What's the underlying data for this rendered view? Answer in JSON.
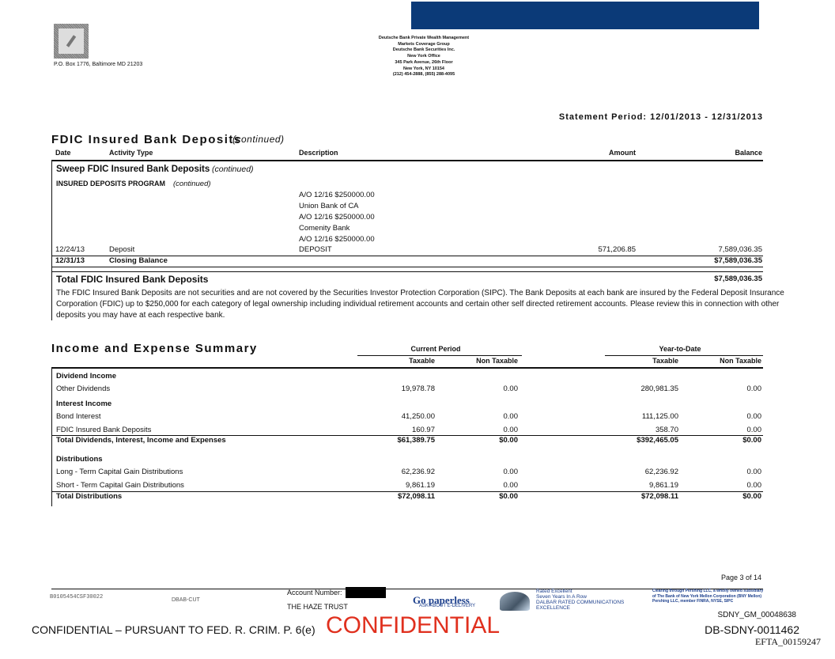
{
  "header": {
    "po_box": "P.O. Box 1776, Baltimore MD 21203",
    "address_lines": [
      "Deutsche Bank Private Wealth Management",
      "Markets Coverage Group",
      "Deutsche Bank Securities Inc.",
      "New York Office",
      "345 Park Avenue, 26th Floor",
      "New York, NY 10154",
      "(212) 454-2888, (855) 288-4095"
    ],
    "statement_period": "Statement Period: 12/01/2013 - 12/31/2013"
  },
  "fdic": {
    "title": "FDIC Insured Bank Deposits",
    "title_suffix": "(continued)",
    "columns": [
      "Date",
      "Activity Type",
      "Description",
      "Amount",
      "Balance"
    ],
    "section": "Sweep FDIC Insured Bank Deposits",
    "section_suffix": "(continued)",
    "program": "INSURED DEPOSITS PROGRAM",
    "program_suffix": "(continued)",
    "description_lines": [
      "A/O 12/16 $250000.00",
      "Union Bank of CA",
      "A/O 12/16 $250000.00",
      "Comenity Bank",
      "A/O 12/16 $250000.00"
    ],
    "deposit_row": [
      "12/24/13",
      "Deposit",
      "DEPOSIT",
      "571,206.85",
      "7,589,036.35"
    ],
    "closing_row": [
      "12/31/13",
      "Closing Balance",
      "$7,589,036.35"
    ],
    "total_label": "Total FDIC Insured Bank Deposits",
    "total_value": "$7,589,036.35",
    "note_lines": [
      "The FDIC Insured Bank Deposits are not securities and are not covered by the Securities Investor Protection Corporation (SIPC). The Bank Deposits at each bank are insured by the Federal Deposit Insurance",
      "Corporation (FDIC) up to $250,000 for each category of legal ownership including individual retirement accounts and certain other self directed retirement accounts. Please review this in connection with other",
      "deposits you may have at each respective bank."
    ]
  },
  "income": {
    "title": "Income and Expense Summary",
    "groups": [
      "Current Period",
      "Year-to-Date"
    ],
    "columns": [
      "Taxable",
      "Non Taxable",
      "Taxable",
      "Non Taxable"
    ],
    "sections": [
      {
        "title": "Dividend Income",
        "rows": [
          {
            "label": "Other Dividends",
            "values": [
              "19,978.78",
              "0.00",
              "280,981.35",
              "0.00"
            ]
          }
        ]
      },
      {
        "title": "Interest Income",
        "rows": [
          {
            "label": "Bond Interest",
            "values": [
              "41,250.00",
              "0.00",
              "111,125.00",
              "0.00"
            ]
          },
          {
            "label": "FDIC Insured Bank Deposits",
            "values": [
              "160.97",
              "0.00",
              "358.70",
              "0.00"
            ]
          }
        ],
        "total": {
          "label": "Total Dividends, Interest, Income and Expenses",
          "values": [
            "$61,389.75",
            "$0.00",
            "$392,465.05",
            "$0.00"
          ]
        }
      },
      {
        "title": "Distributions",
        "rows": [
          {
            "label": "Long - Term Capital Gain Distributions",
            "values": [
              "62,236.92",
              "0.00",
              "62,236.92",
              "0.00"
            ]
          },
          {
            "label": "Short - Term Capital Gain Distributions",
            "values": [
              "9,861.19",
              "0.00",
              "9,861.19",
              "0.00"
            ]
          }
        ],
        "total": {
          "label": "Total Distributions",
          "values": [
            "$72,098.11",
            "$0.00",
            "$72,098.11",
            "$0.00"
          ]
        }
      }
    ]
  },
  "footer": {
    "page": "Page 3 of 14",
    "code": "B0105454CSF30022",
    "dbab": "DBAB-CUT",
    "account_label": "Account Number:",
    "trust": "THE HAZE TRUST",
    "go_paperless": "Go paperless",
    "ask": "ASK ABOUT E-DELIVERY",
    "rated_lines": [
      "Rated Excellent",
      "Seven Years In A Row",
      "DALBAR RATED COMMUNICATIONS",
      "EXCELLENCE"
    ],
    "clearing_lines": [
      "Clearing through Pershing LLC, a wholly owned subsidiary",
      "of The Bank of New York Mellon Corporation (BNY Mellon)",
      "Pershing LLC, member FINRA, NYSE, SIPC"
    ],
    "stamp": "CONFIDENTIAL",
    "sdny_gm": "SDNY_GM_00048638",
    "confidential_line": "CONFIDENTIAL – PURSUANT TO FED. R. CRIM. P. 6(e)",
    "db_sdny": "DB-SDNY-0011462",
    "efta": "EFTA_00159247"
  }
}
